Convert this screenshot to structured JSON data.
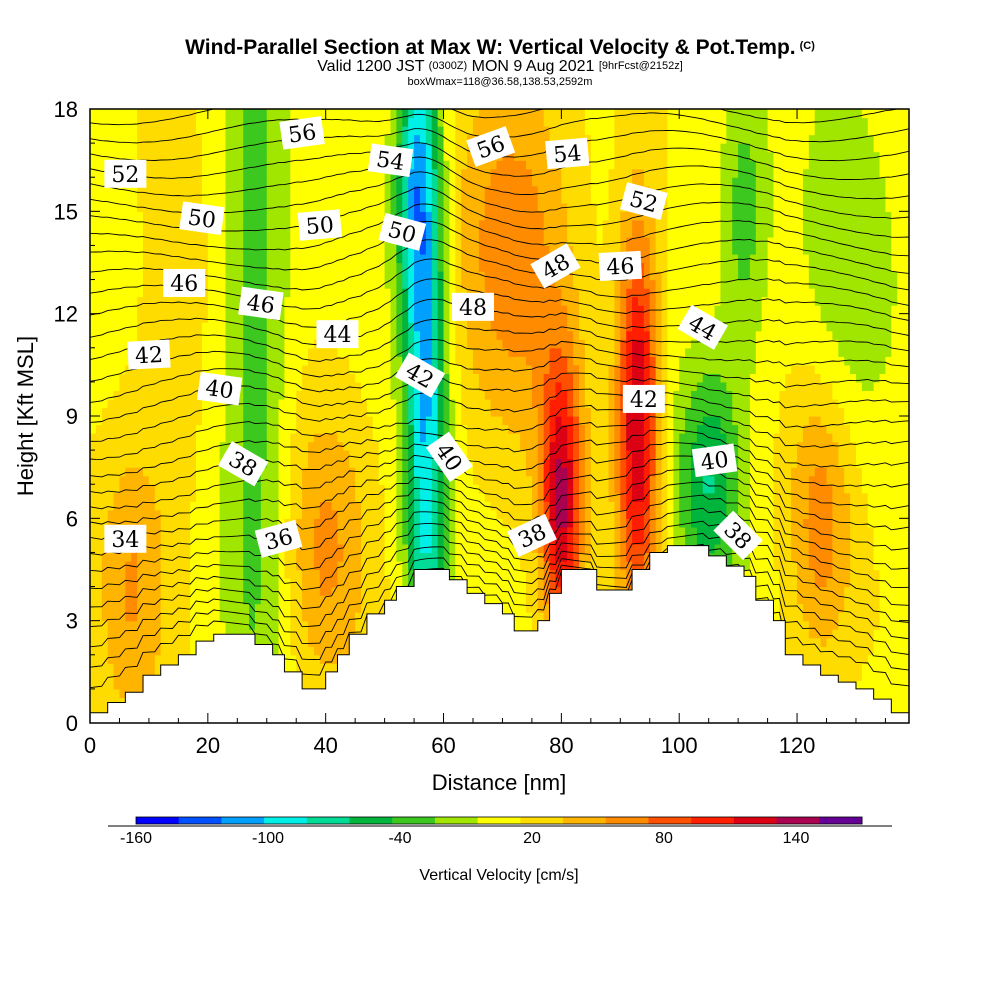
{
  "header": {
    "title": "Wind-Parallel Section at Max W: Vertical Velocity & Pot.Temp.",
    "copyright": "(C)",
    "valid_prefix": "Valid 1200 JST",
    "valid_utc": "(0300Z)",
    "valid_suffix": "MON 9 Aug 2021",
    "fcst": "[9hrFcst@2152z]",
    "box": "boxWmax=118@36.58,138.53,2592m"
  },
  "chart_data": {
    "type": "heatmap",
    "xlabel": "Distance [nm]",
    "ylabel": "Height [Kft MSL]",
    "xlim": [
      0,
      139
    ],
    "ylim": [
      0,
      18
    ],
    "x_ticks": [
      "0",
      "20",
      "40",
      "60",
      "80",
      "100",
      "120"
    ],
    "y_ticks": [
      "0",
      "3",
      "6",
      "9",
      "12",
      "15",
      "18"
    ],
    "colorbar": {
      "title": "Vertical Velocity [cm/s]",
      "labels": [
        "-160",
        "-100",
        "-40",
        "20",
        "80",
        "140"
      ],
      "label_values": [
        -160,
        -100,
        -40,
        20,
        80,
        140
      ],
      "range": [
        -160,
        170
      ],
      "colors": [
        "#0000ff",
        "#0050ff",
        "#00a0ff",
        "#00f0e8",
        "#00dc96",
        "#00b43c",
        "#3cc81e",
        "#a0e600",
        "#ffff00",
        "#ffdc00",
        "#ffb400",
        "#ff8c00",
        "#ff5000",
        "#ff1e00",
        "#dc0014",
        "#aa0050",
        "#640096"
      ]
    },
    "terrain": [
      [
        0,
        0.3
      ],
      [
        3,
        0.6
      ],
      [
        6,
        0.9
      ],
      [
        9,
        1.4
      ],
      [
        12,
        1.7
      ],
      [
        15,
        2.0
      ],
      [
        18,
        2.4
      ],
      [
        21,
        2.6
      ],
      [
        26,
        2.6
      ],
      [
        28,
        2.3
      ],
      [
        31,
        2.0
      ],
      [
        33,
        1.5
      ],
      [
        36,
        1.0
      ],
      [
        38,
        1.0
      ],
      [
        40,
        1.5
      ],
      [
        42,
        2.0
      ],
      [
        44,
        2.6
      ],
      [
        47,
        3.2
      ],
      [
        50,
        3.6
      ],
      [
        52,
        4.0
      ],
      [
        55,
        4.5
      ],
      [
        58,
        4.5
      ],
      [
        61,
        4.2
      ],
      [
        64,
        3.8
      ],
      [
        67,
        3.5
      ],
      [
        70,
        3.2
      ],
      [
        72,
        2.7
      ],
      [
        74,
        2.7
      ],
      [
        76,
        3.0
      ],
      [
        78,
        3.8
      ],
      [
        80,
        4.5
      ],
      [
        83,
        4.5
      ],
      [
        86,
        3.9
      ],
      [
        89,
        3.9
      ],
      [
        92,
        4.5
      ],
      [
        95,
        5.0
      ],
      [
        98,
        5.2
      ],
      [
        102,
        5.2
      ],
      [
        105,
        4.9
      ],
      [
        108,
        4.6
      ],
      [
        111,
        4.3
      ],
      [
        113,
        3.6
      ],
      [
        116,
        3.0
      ],
      [
        118,
        2.0
      ],
      [
        121,
        1.7
      ],
      [
        124,
        1.4
      ],
      [
        127,
        1.2
      ],
      [
        130,
        1.0
      ],
      [
        133,
        0.7
      ],
      [
        136,
        0.3
      ],
      [
        139,
        0.3
      ]
    ],
    "field_centers": [
      {
        "x": 28,
        "y": 11,
        "w": -45,
        "sx": 4,
        "sy": 10
      },
      {
        "x": 57,
        "y": 9,
        "w": -110,
        "sx": 2.5,
        "sy": 7
      },
      {
        "x": 55,
        "y": 16,
        "w": -80,
        "sx": 2.5,
        "sy": 3
      },
      {
        "x": 105,
        "y": 7,
        "w": -70,
        "sx": 4,
        "sy": 2.5
      },
      {
        "x": 111,
        "y": 15,
        "w": -45,
        "sx": 3,
        "sy": 3
      },
      {
        "x": 128,
        "y": 13,
        "w": -30,
        "sx": 6,
        "sy": 4
      },
      {
        "x": 80,
        "y": 6.5,
        "w": 120,
        "sx": 2.5,
        "sy": 3
      },
      {
        "x": 93,
        "y": 9,
        "w": 125,
        "sx": 2.5,
        "sy": 4
      },
      {
        "x": 72,
        "y": 14,
        "w": 55,
        "sx": 7,
        "sy": 4
      },
      {
        "x": 7,
        "y": 4,
        "w": 40,
        "sx": 4,
        "sy": 3
      },
      {
        "x": 124,
        "y": 6,
        "w": 55,
        "sx": 4,
        "sy": 3
      },
      {
        "x": 40,
        "y": 5,
        "w": 45,
        "sx": 5,
        "sy": 3
      },
      {
        "x": 14,
        "y": 10,
        "w": 15,
        "sx": 5,
        "sy": 5
      }
    ],
    "theta_labels": [
      {
        "text": "56",
        "x": 36,
        "y": 17.3,
        "rot": -8
      },
      {
        "text": "52",
        "x": 6,
        "y": 16.1,
        "rot": 0
      },
      {
        "text": "54",
        "x": 51,
        "y": 16.5,
        "rot": 8
      },
      {
        "text": "56",
        "x": 68,
        "y": 16.9,
        "rot": -20
      },
      {
        "text": "54",
        "x": 81,
        "y": 16.7,
        "rot": -5
      },
      {
        "text": "50",
        "x": 19,
        "y": 14.8,
        "rot": 8
      },
      {
        "text": "50",
        "x": 39,
        "y": 14.6,
        "rot": -5
      },
      {
        "text": "50",
        "x": 53,
        "y": 14.4,
        "rot": 15
      },
      {
        "text": "52",
        "x": 94,
        "y": 15.3,
        "rot": 15
      },
      {
        "text": "46",
        "x": 16,
        "y": 12.9,
        "rot": 0
      },
      {
        "text": "46",
        "x": 29,
        "y": 12.3,
        "rot": 8
      },
      {
        "text": "48",
        "x": 79,
        "y": 13.4,
        "rot": -30
      },
      {
        "text": "46",
        "x": 90,
        "y": 13.4,
        "rot": -3
      },
      {
        "text": "48",
        "x": 65,
        "y": 12.2,
        "rot": 0
      },
      {
        "text": "44",
        "x": 42,
        "y": 11.4,
        "rot": 0
      },
      {
        "text": "44",
        "x": 104,
        "y": 11.6,
        "rot": 30
      },
      {
        "text": "42",
        "x": 10,
        "y": 10.8,
        "rot": -3
      },
      {
        "text": "42",
        "x": 56,
        "y": 10.2,
        "rot": 30
      },
      {
        "text": "42",
        "x": 94,
        "y": 9.5,
        "rot": 0
      },
      {
        "text": "40",
        "x": 22,
        "y": 9.8,
        "rot": 8
      },
      {
        "text": "40",
        "x": 61,
        "y": 7.8,
        "rot": 55
      },
      {
        "text": "40",
        "x": 106,
        "y": 7.7,
        "rot": -8
      },
      {
        "text": "38",
        "x": 26,
        "y": 7.6,
        "rot": 30
      },
      {
        "text": "38",
        "x": 75,
        "y": 5.5,
        "rot": -25
      },
      {
        "text": "38",
        "x": 110,
        "y": 5.5,
        "rot": 45
      },
      {
        "text": "36",
        "x": 32,
        "y": 5.4,
        "rot": -15
      },
      {
        "text": "34",
        "x": 6,
        "y": 5.4,
        "rot": 0
      }
    ]
  }
}
